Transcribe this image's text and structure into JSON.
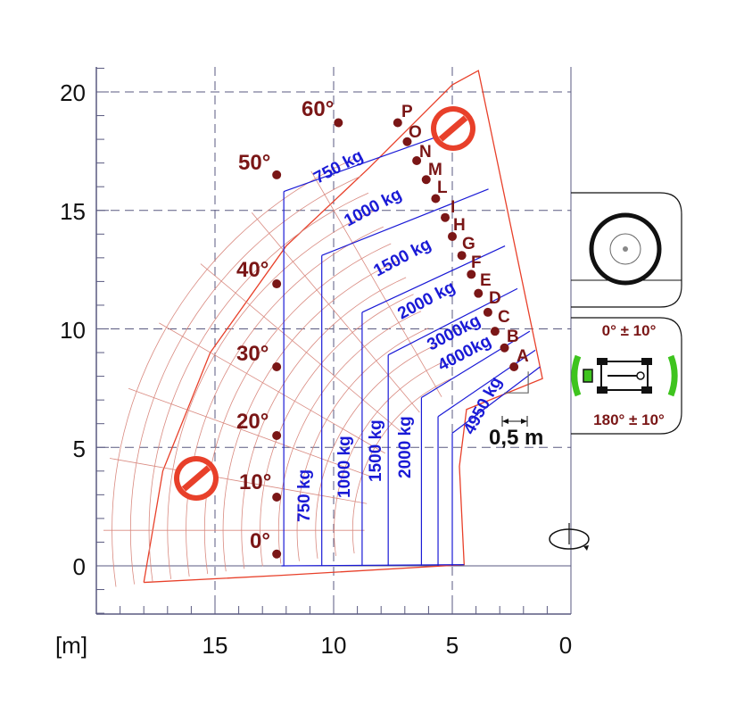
{
  "chart_data": {
    "type": "load_chart",
    "xlabel": "[m]",
    "x_ticks": [
      "15",
      "10",
      "5",
      "0"
    ],
    "x_tick_values": [
      15,
      10,
      5,
      0
    ],
    "y_ticks": [
      "20",
      "15",
      "10",
      "5",
      "0"
    ],
    "y_tick_values": [
      20,
      15,
      10,
      5,
      0
    ],
    "xlim": [
      0,
      20
    ],
    "ylim": [
      -2,
      21
    ],
    "x_axis_reversed": true,
    "grid": true,
    "boom_angles": [
      {
        "label": "0°",
        "angle": 0
      },
      {
        "label": "10°",
        "angle": 10
      },
      {
        "label": "20°",
        "angle": 20
      },
      {
        "label": "30°",
        "angle": 30
      },
      {
        "label": "40°",
        "angle": 40
      },
      {
        "label": "50°",
        "angle": 50
      },
      {
        "label": "60°",
        "angle": 60
      }
    ],
    "extension_points": [
      {
        "label": "A",
        "x": 2.4,
        "y": 8.4
      },
      {
        "label": "B",
        "x": 2.8,
        "y": 9.2
      },
      {
        "label": "C",
        "x": 3.2,
        "y": 9.9
      },
      {
        "label": "D",
        "x": 3.5,
        "y": 10.7
      },
      {
        "label": "E",
        "x": 3.9,
        "y": 11.5
      },
      {
        "label": "F",
        "x": 4.2,
        "y": 12.3
      },
      {
        "label": "G",
        "x": 4.6,
        "y": 13.1
      },
      {
        "label": "H",
        "x": 5.0,
        "y": 13.9
      },
      {
        "label": "I",
        "x": 5.3,
        "y": 14.7
      },
      {
        "label": "L",
        "x": 5.7,
        "y": 15.5
      },
      {
        "label": "M",
        "x": 6.1,
        "y": 16.3
      },
      {
        "label": "N",
        "x": 6.5,
        "y": 17.1
      },
      {
        "label": "O",
        "x": 6.9,
        "y": 17.9
      },
      {
        "label": "P",
        "x": 7.3,
        "y": 18.7
      }
    ],
    "load_zones": [
      {
        "label": "4950 kg",
        "kg": 4950,
        "max_reach": 5.0
      },
      {
        "label": "4000kg",
        "kg": 4000,
        "max_reach": 5.6
      },
      {
        "label": "3000kg",
        "kg": 3000,
        "max_reach": 6.3
      },
      {
        "label": "2000 kg",
        "kg": 2000,
        "max_reach": 7.7
      },
      {
        "label": "1500 kg",
        "kg": 1500,
        "max_reach": 8.8
      },
      {
        "label": "1000 kg",
        "kg": 1000,
        "max_reach": 10.5
      },
      {
        "label": "750 kg",
        "kg": 750,
        "max_reach": 12.1
      }
    ],
    "annotations": {
      "offset_label": "0,5 m",
      "rotation_front": "0° ± 10°",
      "rotation_rear": "180° ± 10°"
    }
  },
  "colors": {
    "envelope": "#e8402a",
    "load_lines": "#1a1ad6",
    "arcs": "#d98a80",
    "points": "#7a1616",
    "grid": "#5a5a80",
    "stop_sign": "#e8402a",
    "stabilizer_green": "#3ec41e"
  },
  "icons": {
    "stop_left": "no-entry-sign-icon",
    "stop_top": "no-entry-sign-icon",
    "rotation": "rotation-arrow-icon",
    "wheel": "wheel-icon",
    "machine": "machine-top-view-icon"
  }
}
